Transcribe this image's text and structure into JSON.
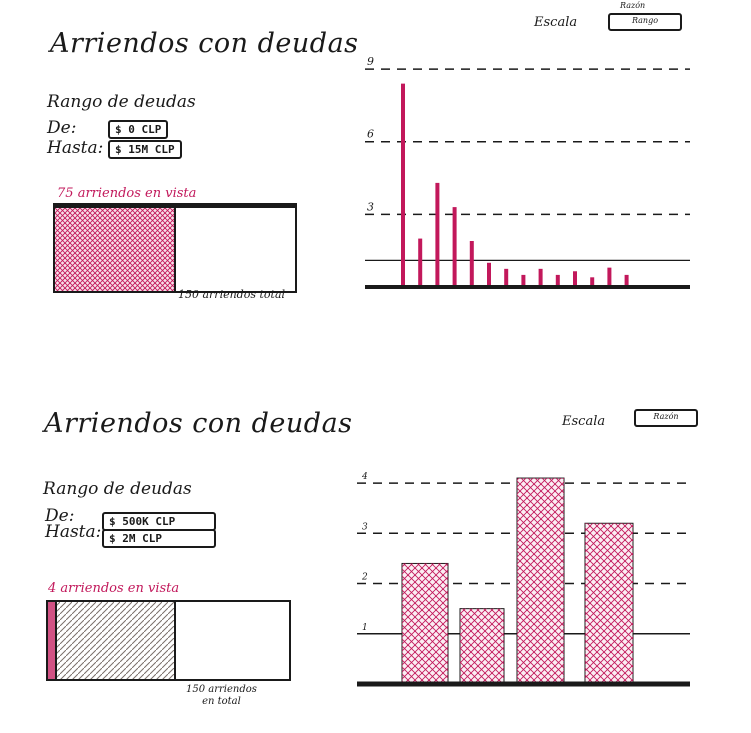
{
  "panels": [
    {
      "title": "Arriendos con deudas",
      "range_heading": "Rango de deudas",
      "from_label": "De:",
      "from_value": "$ 0 CLP",
      "to_label": "Hasta:",
      "to_value": "$ 15M CLP",
      "in_view_count": "75",
      "in_view_text": "arriendos en vista",
      "total_text": "150 arriendos total",
      "visible_fraction": 0.5,
      "scale_label": "Escala",
      "scale_top": "Razón",
      "scale_value": "Rango"
    },
    {
      "title": "Arriendos con deudas",
      "range_heading": "Rango de deudas",
      "from_label": "De:",
      "from_value": "$ 500K CLP",
      "to_label": "Hasta:",
      "to_value": "$ 2M CLP",
      "in_view_count": "4",
      "in_view_text": "arriendos en vista",
      "total_text_line1": "150 arriendos",
      "total_text_line2": "en total",
      "visible_fraction": 0.027,
      "scale_label": "Escala",
      "scale_value": "Razón"
    }
  ],
  "colors": {
    "accent": "#c2185b",
    "ink": "#1a1a1a",
    "hatch_gray": "#7a6f6a"
  },
  "chart_data": [
    {
      "type": "bar",
      "ylim": [
        0,
        9.5
      ],
      "yticks": [
        "3",
        "6",
        "9"
      ],
      "ytick_values": [
        3,
        6,
        9
      ],
      "reference_line": 1.1,
      "values": [
        8.4,
        2.0,
        4.3,
        3.3,
        1.9,
        1.0,
        0.75,
        0.5,
        0.75,
        0.5,
        0.65,
        0.4,
        0.8,
        0.5
      ]
    },
    {
      "type": "bar",
      "ylim": [
        0,
        4.3
      ],
      "yticks": [
        "1",
        "2",
        "3",
        "4"
      ],
      "ytick_values": [
        1,
        2,
        3,
        4
      ],
      "values": [
        2.4,
        1.5,
        4.1,
        3.2
      ]
    }
  ]
}
